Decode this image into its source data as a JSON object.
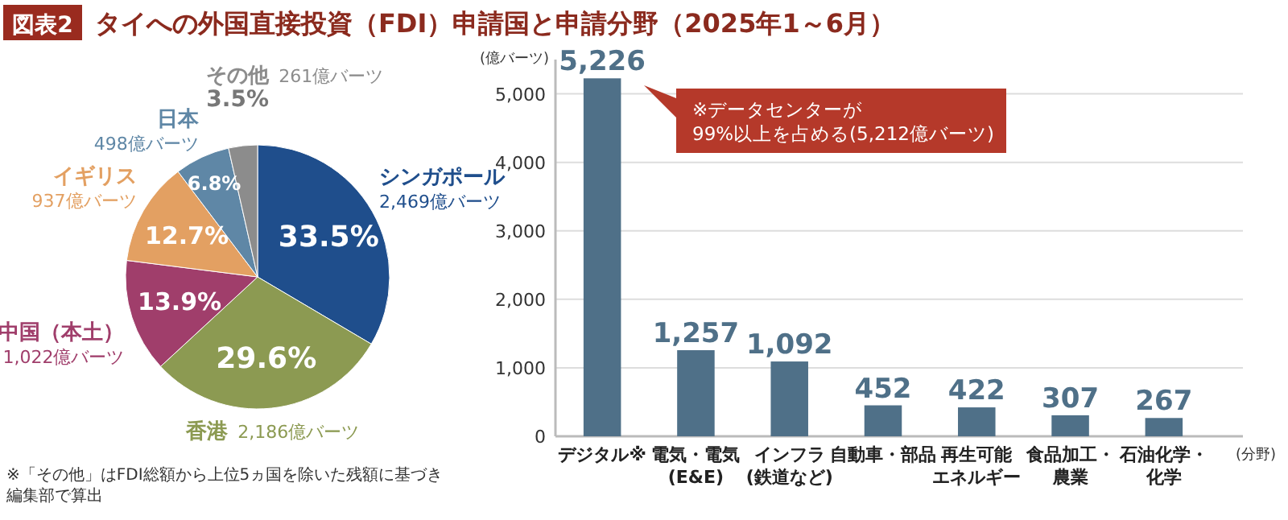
{
  "chart_data": [
    {
      "type": "pie",
      "title": "図表2 タイへの外国直接投資（FDI）申請国と申請分野（2025年1～6月）",
      "categories": [
        "シンガポール",
        "香港",
        "中国（本土）",
        "イギリス",
        "日本",
        "その他"
      ],
      "values": [
        2469,
        2186,
        1022,
        937,
        498,
        261
      ],
      "value_labels": [
        "2,469億バーツ",
        "2,186億バーツ",
        "1,022億バーツ",
        "937億バーツ",
        "498億バーツ",
        "261億バーツ"
      ],
      "colors": [
        "#1f4e8c",
        "#8c9a52",
        "#a03e6b",
        "#e3a062",
        "#5f87a6",
        "#8c8c8c"
      ],
      "annotations": [
        {
          "text": "33.5%",
          "x": "シンガポール"
        },
        {
          "text": "29.6%",
          "x": "香港"
        },
        {
          "text": "13.9%",
          "x": "中国（本土）"
        },
        {
          "text": "12.7%",
          "x": "イギリス"
        },
        {
          "text": "6.8%",
          "x": "日本"
        },
        {
          "text": "3.5%",
          "x": "その他"
        },
        "※「その他」はFDI総額から上位5ヵ国を除いた残額に基づき編集部で算出"
      ]
    },
    {
      "type": "bar",
      "ylabel": "(億バーツ)",
      "xlabel": "(分野)",
      "categories": [
        "デジタル※",
        "電気・電気(E&E)",
        "インフラ(鉄道など)",
        "自動車・部品",
        "再生可能エネルギー",
        "食品加工・農業",
        "石油化学・化学"
      ],
      "values": [
        5226,
        1257,
        1092,
        452,
        422,
        307,
        267
      ],
      "color": "#4f7088",
      "value_labels": [
        "5,226",
        "1,257",
        "1,092",
        "452",
        "422",
        "307",
        "267"
      ],
      "ylim": [
        0,
        5500
      ],
      "yticks": [
        {
          "value": 0,
          "label": "0"
        },
        {
          "value": 1000,
          "label": "1,000"
        },
        {
          "value": 2000,
          "label": "2,000"
        },
        {
          "value": 3000,
          "label": "3,000"
        },
        {
          "value": 4000,
          "label": "4,000"
        },
        {
          "value": 5000,
          "label": "5,000"
        }
      ],
      "grid": "y",
      "annotations": [
        "※データセンターが99%以上を占める(5,212億バーツ)"
      ]
    }
  ]
}
